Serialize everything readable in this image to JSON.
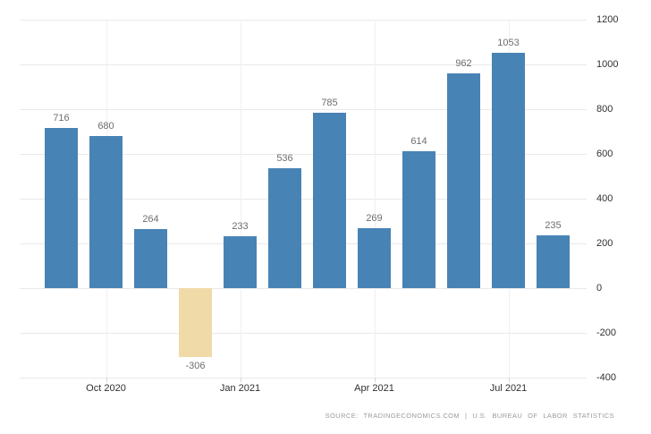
{
  "chart_data": {
    "type": "bar",
    "title": "",
    "xlabel": "",
    "ylabel": "",
    "values": [
      716,
      680,
      264,
      -306,
      233,
      536,
      785,
      269,
      614,
      962,
      1053,
      235
    ],
    "bar_labels": [
      "716",
      "680",
      "264",
      "-306",
      "233",
      "536",
      "785",
      "269",
      "614",
      "962",
      "1053",
      "235"
    ],
    "x_ticks": [
      {
        "bar_index": 1,
        "label": "Oct 2020"
      },
      {
        "bar_index": 4,
        "label": "Jan 2021"
      },
      {
        "bar_index": 7,
        "label": "Apr 2021"
      },
      {
        "bar_index": 10,
        "label": "Jul 2021"
      }
    ],
    "y_ticks": [
      "1200",
      "1000",
      "800",
      "600",
      "400",
      "200",
      "0",
      "-200",
      "-400"
    ],
    "ylim": [
      -400,
      1200
    ],
    "grid": true,
    "legend_position": "none",
    "y_axis_side": "right",
    "colors": {
      "positive_bar": "#4883b5",
      "negative_bar": "#f0daa8",
      "gridline": "#e9e9e9",
      "value_label": "#6e6e6e",
      "axis_label": "#303030"
    },
    "source": "SOURCE: TRADINGECONOMICS.COM | U.S. BUREAU OF LABOR STATISTICS"
  }
}
